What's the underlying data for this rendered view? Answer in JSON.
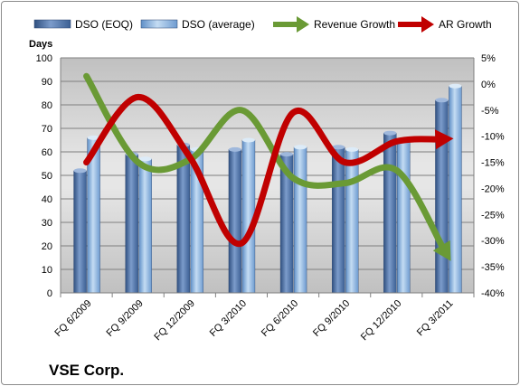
{
  "chart_data": {
    "type": "bar",
    "categories": [
      "FQ 6/2009",
      "FQ 9/2009",
      "FQ 12/2009",
      "FQ 3/2010",
      "FQ 6/2010",
      "FQ 9/2010",
      "FQ 12/2010",
      "FQ 3/2011"
    ],
    "series": [
      {
        "name": "DSO (EOQ)",
        "type": "bar",
        "axis": "left",
        "values": [
          52,
          59,
          63,
          61,
          59,
          62,
          68,
          82
        ]
      },
      {
        "name": "DSO (average)",
        "type": "bar",
        "axis": "left",
        "values": [
          66,
          57,
          61,
          65,
          62,
          61,
          65,
          88
        ]
      },
      {
        "name": "Revenue Growth",
        "type": "line",
        "axis": "right",
        "unit": "%",
        "values": [
          1.5,
          -15,
          -14.5,
          -5,
          -18,
          -19,
          -16.5,
          -33
        ]
      },
      {
        "name": "AR Growth",
        "type": "line",
        "axis": "right",
        "unit": "%",
        "values": [
          -15,
          -2.5,
          -14,
          -30.5,
          -5.5,
          -15,
          -11,
          -10.5
        ]
      }
    ],
    "ylabel": "Days",
    "ylim": [
      0,
      100
    ],
    "yticks": [
      0,
      10,
      20,
      30,
      40,
      50,
      60,
      70,
      80,
      90,
      100
    ],
    "y2lim": [
      -40,
      5
    ],
    "y2ticks": [
      "5%",
      "0%",
      "-5%",
      "-10%",
      "-15%",
      "-20%",
      "-25%",
      "-30%",
      "-35%",
      "-40%"
    ],
    "legend_position": "top",
    "grid": true,
    "colors": {
      "dso_eoq": "#4a6fa5",
      "dso_avg": "#8db4e2",
      "revenue_growth": "#6a9a35",
      "ar_growth": "#c00000"
    }
  },
  "company": "VSE Corp."
}
